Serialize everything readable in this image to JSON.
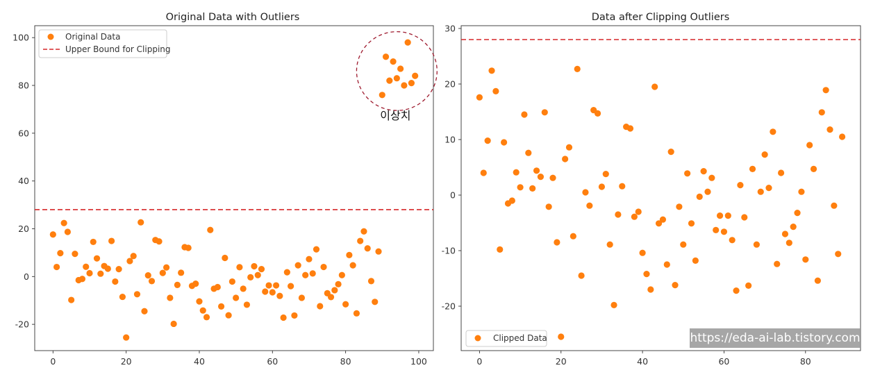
{
  "colors": {
    "marker": "#ff7f0e",
    "bound": "#d62728",
    "circle": "#9e1a2e"
  },
  "chart_data": [
    {
      "type": "scatter",
      "title": "Original Data with Outliers",
      "xlim": [
        -5,
        104
      ],
      "ylim": [
        -31,
        105
      ],
      "xticks": [
        0,
        20,
        40,
        60,
        80,
        100
      ],
      "yticks": [
        -20,
        0,
        20,
        40,
        60,
        80,
        100
      ],
      "hline": 28,
      "legend": {
        "position": "upper-left",
        "entries": [
          "Original Data",
          "Upper Bound for Clipping"
        ]
      },
      "annotation": {
        "text": "이상치",
        "circle_center": [
          94,
          86
        ],
        "circle_radius_data": [
          11,
          16.5
        ]
      },
      "series": [
        {
          "name": "Original Data",
          "x": [
            0,
            1,
            2,
            3,
            4,
            5,
            6,
            7,
            8,
            9,
            10,
            11,
            12,
            13,
            14,
            15,
            16,
            17,
            18,
            19,
            20,
            21,
            22,
            23,
            24,
            25,
            26,
            27,
            28,
            29,
            30,
            31,
            32,
            33,
            34,
            35,
            36,
            37,
            38,
            39,
            40,
            41,
            42,
            43,
            44,
            45,
            46,
            47,
            48,
            49,
            50,
            51,
            52,
            53,
            54,
            55,
            56,
            57,
            58,
            59,
            60,
            61,
            62,
            63,
            64,
            65,
            66,
            67,
            68,
            69,
            70,
            71,
            72,
            73,
            74,
            75,
            76,
            77,
            78,
            79,
            80,
            81,
            82,
            83,
            84,
            85,
            86,
            87,
            88,
            89,
            90,
            91,
            92,
            93,
            94,
            95,
            96,
            97,
            98,
            99
          ],
          "y": [
            17.6,
            4.0,
            9.8,
            22.4,
            18.7,
            -9.8,
            9.5,
            -1.5,
            -1.0,
            4.1,
            1.4,
            14.5,
            7.6,
            1.2,
            4.4,
            3.3,
            14.9,
            -2.1,
            3.1,
            -8.5,
            -25.5,
            6.5,
            8.6,
            -7.4,
            22.7,
            -14.5,
            0.5,
            -1.9,
            15.3,
            14.7,
            1.5,
            3.8,
            -8.9,
            -19.8,
            -3.5,
            1.6,
            12.3,
            12.0,
            -3.9,
            -3.0,
            -10.4,
            -14.2,
            -17.0,
            19.5,
            -5.1,
            -4.4,
            -12.5,
            7.8,
            -16.2,
            -2.1,
            -8.9,
            3.9,
            -5.1,
            -11.8,
            -0.3,
            4.3,
            0.6,
            3.1,
            -6.3,
            -3.7,
            -6.6,
            -3.7,
            -8.1,
            -17.2,
            1.8,
            -4.0,
            -16.3,
            4.7,
            -8.9,
            0.6,
            7.3,
            1.3,
            11.4,
            -12.4,
            4.0,
            -7.0,
            -8.6,
            -5.7,
            -3.2,
            0.6,
            -11.6,
            9.0,
            4.7,
            -15.4,
            14.9,
            18.9,
            11.8,
            -1.9,
            -10.6,
            10.5,
            76,
            92,
            82,
            90,
            83,
            87,
            80,
            98,
            81,
            84
          ]
        }
      ]
    },
    {
      "type": "scatter",
      "title": "Data after Clipping Outliers",
      "xlim": [
        -4.5,
        93.5
      ],
      "ylim": [
        -28,
        30.5
      ],
      "xticks": [
        0,
        20,
        40,
        60,
        80
      ],
      "yticks": [
        -20,
        -10,
        0,
        10,
        20,
        30
      ],
      "hline": 28,
      "legend": {
        "position": "lower-left",
        "entries": [
          "Clipped Data"
        ]
      },
      "series": [
        {
          "name": "Clipped Data",
          "x": [
            0,
            1,
            2,
            3,
            4,
            5,
            6,
            7,
            8,
            9,
            10,
            11,
            12,
            13,
            14,
            15,
            16,
            17,
            18,
            19,
            20,
            21,
            22,
            23,
            24,
            25,
            26,
            27,
            28,
            29,
            30,
            31,
            32,
            33,
            34,
            35,
            36,
            37,
            38,
            39,
            40,
            41,
            42,
            43,
            44,
            45,
            46,
            47,
            48,
            49,
            50,
            51,
            52,
            53,
            54,
            55,
            56,
            57,
            58,
            59,
            60,
            61,
            62,
            63,
            64,
            65,
            66,
            67,
            68,
            69,
            70,
            71,
            72,
            73,
            74,
            75,
            76,
            77,
            78,
            79,
            80,
            81,
            82,
            83,
            84,
            85,
            86,
            87,
            88,
            89
          ],
          "y": [
            17.6,
            4.0,
            9.8,
            22.4,
            18.7,
            -9.8,
            9.5,
            -1.5,
            -1.0,
            4.1,
            1.4,
            14.5,
            7.6,
            1.2,
            4.4,
            3.3,
            14.9,
            -2.1,
            3.1,
            -8.5,
            -25.5,
            6.5,
            8.6,
            -7.4,
            22.7,
            -14.5,
            0.5,
            -1.9,
            15.3,
            14.7,
            1.5,
            3.8,
            -8.9,
            -19.8,
            -3.5,
            1.6,
            12.3,
            12.0,
            -3.9,
            -3.0,
            -10.4,
            -14.2,
            -17.0,
            19.5,
            -5.1,
            -4.4,
            -12.5,
            7.8,
            -16.2,
            -2.1,
            -8.9,
            3.9,
            -5.1,
            -11.8,
            -0.3,
            4.3,
            0.6,
            3.1,
            -6.3,
            -3.7,
            -6.6,
            -3.7,
            -8.1,
            -17.2,
            1.8,
            -4.0,
            -16.3,
            4.7,
            -8.9,
            0.6,
            7.3,
            1.3,
            11.4,
            -12.4,
            4.0,
            -7.0,
            -8.6,
            -5.7,
            -3.2,
            0.6,
            -11.6,
            9.0,
            4.7,
            -15.4,
            14.9,
            18.9,
            11.8,
            -1.9,
            -10.6,
            10.5
          ]
        }
      ]
    }
  ],
  "watermark": "https://eda-ai-lab.tistory.com"
}
